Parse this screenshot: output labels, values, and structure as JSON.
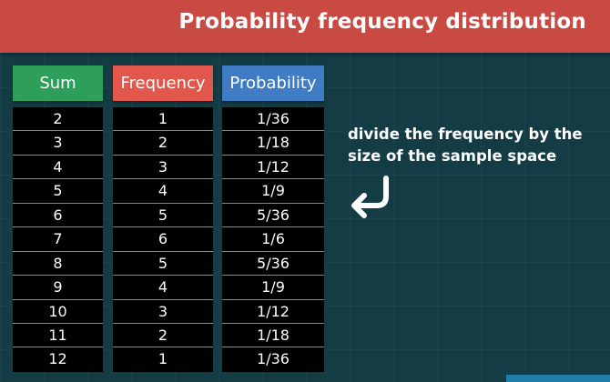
{
  "banner": {
    "title": "Probability frequency distribution"
  },
  "table": {
    "headers": {
      "sum": "Sum",
      "frequency": "Frequency",
      "probability": "Probability"
    },
    "sum": [
      "2",
      "3",
      "4",
      "5",
      "6",
      "7",
      "8",
      "9",
      "10",
      "11",
      "12"
    ],
    "frequency": [
      "1",
      "2",
      "3",
      "4",
      "5",
      "6",
      "5",
      "4",
      "3",
      "2",
      "1"
    ],
    "probability": [
      "1/36",
      "1/18",
      "1/12",
      "1/9",
      "5/36",
      "1/6",
      "5/36",
      "1/9",
      "1/12",
      "1/18",
      "1/36"
    ]
  },
  "note": {
    "text": "divide the frequency by the size of the sample space"
  },
  "icons": {
    "arrow": "return-arrow-icon"
  },
  "colors": {
    "banner": "#c94a43",
    "sum_header": "#2e9e5b",
    "frequency_header": "#e2574c",
    "probability_header": "#3f7cc4",
    "background": "#143c45"
  }
}
